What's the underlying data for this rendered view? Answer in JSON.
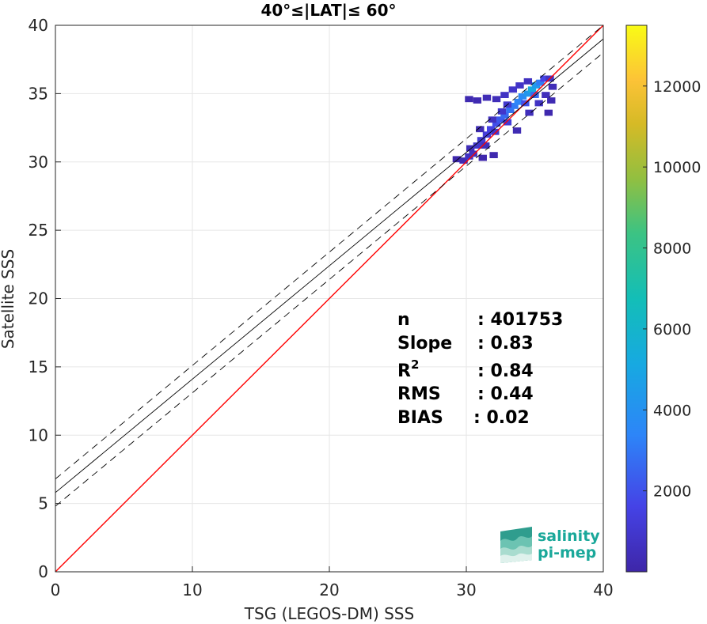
{
  "chart_data": {
    "type": "heatmap",
    "title": "40°≤|LAT|≤ 60°",
    "xlabel": "TSG (LEGOS-DM) SSS",
    "ylabel": "Satellite SSS",
    "xlim": [
      0,
      40
    ],
    "ylim": [
      0,
      40
    ],
    "xticks": [
      "0",
      "10",
      "20",
      "30",
      "40"
    ],
    "yticks": [
      "0",
      "5",
      "10",
      "15",
      "20",
      "25",
      "30",
      "35",
      "40"
    ],
    "grid": true,
    "colorbar": {
      "range": [
        0,
        13500
      ],
      "ticks": [
        "2000",
        "4000",
        "6000",
        "8000",
        "10000",
        "12000"
      ],
      "colormap": "parula"
    },
    "lines": [
      {
        "kind": "identity",
        "color": "#ff0000",
        "points": [
          [
            0,
            0
          ],
          [
            40,
            40
          ]
        ]
      },
      {
        "kind": "fit",
        "color": "#000000",
        "style": "solid",
        "intercept": 5.8,
        "slope": 0.83
      },
      {
        "kind": "fit-upper",
        "color": "#000000",
        "style": "dashed",
        "intercept": 6.8,
        "slope": 0.83
      },
      {
        "kind": "fit-lower",
        "color": "#000000",
        "style": "dashed",
        "intercept": 4.8,
        "slope": 0.83
      }
    ],
    "density_bins": [
      [
        29.3,
        30.2,
        80
      ],
      [
        29.8,
        30.1,
        300
      ],
      [
        30.2,
        30.4,
        700
      ],
      [
        30.5,
        30.6,
        600
      ],
      [
        30.3,
        31.0,
        400
      ],
      [
        30.8,
        31.2,
        900
      ],
      [
        31.1,
        31.6,
        1100
      ],
      [
        31.4,
        31.2,
        500
      ],
      [
        31.5,
        32.0,
        1300
      ],
      [
        31.8,
        32.4,
        1600
      ],
      [
        32.1,
        32.2,
        900
      ],
      [
        32.2,
        32.8,
        1900
      ],
      [
        32.5,
        33.1,
        2200
      ],
      [
        32.8,
        33.4,
        2600
      ],
      [
        33.0,
        32.9,
        1200
      ],
      [
        33.2,
        33.8,
        2900
      ],
      [
        33.5,
        34.1,
        3100
      ],
      [
        33.8,
        34.4,
        3400
      ],
      [
        34.1,
        34.8,
        3600
      ],
      [
        34.3,
        34.3,
        2000
      ],
      [
        34.5,
        35.0,
        4200
      ],
      [
        34.8,
        35.3,
        5200
      ],
      [
        35.0,
        34.9,
        2600
      ],
      [
        35.1,
        35.6,
        4400
      ],
      [
        35.4,
        35.8,
        3200
      ],
      [
        35.7,
        36.1,
        1600
      ],
      [
        36.1,
        36.1,
        700
      ],
      [
        36.3,
        35.5,
        400
      ],
      [
        30.2,
        34.6,
        200
      ],
      [
        30.8,
        34.5,
        250
      ],
      [
        31.5,
        34.7,
        350
      ],
      [
        32.2,
        34.6,
        450
      ],
      [
        32.8,
        34.9,
        700
      ],
      [
        33.4,
        35.3,
        900
      ],
      [
        33.9,
        35.6,
        800
      ],
      [
        34.5,
        35.9,
        600
      ],
      [
        33.0,
        34.2,
        1000
      ],
      [
        32.6,
        33.7,
        900
      ],
      [
        31.9,
        33.1,
        600
      ],
      [
        31.0,
        32.4,
        300
      ],
      [
        34.6,
        33.6,
        500
      ],
      [
        35.3,
        34.3,
        700
      ],
      [
        35.8,
        34.9,
        500
      ],
      [
        36.2,
        34.5,
        300
      ],
      [
        32.0,
        30.5,
        150
      ],
      [
        31.2,
        30.3,
        120
      ],
      [
        33.7,
        32.3,
        300
      ],
      [
        36.0,
        33.6,
        150
      ]
    ],
    "annotations": {
      "n_label": "n",
      "n_value": ": 401753",
      "slope_label": "Slope",
      "slope_value": ": 0.83",
      "r2_label": "R",
      "r2_sup": "2",
      "r2_value": ": 0.84",
      "rms_label": "RMS",
      "rms_value": ": 0.44",
      "bias_label": "BIAS",
      "bias_value": ": 0.02"
    }
  },
  "logo": {
    "line1": "salinity",
    "line2": "pi-mep"
  }
}
